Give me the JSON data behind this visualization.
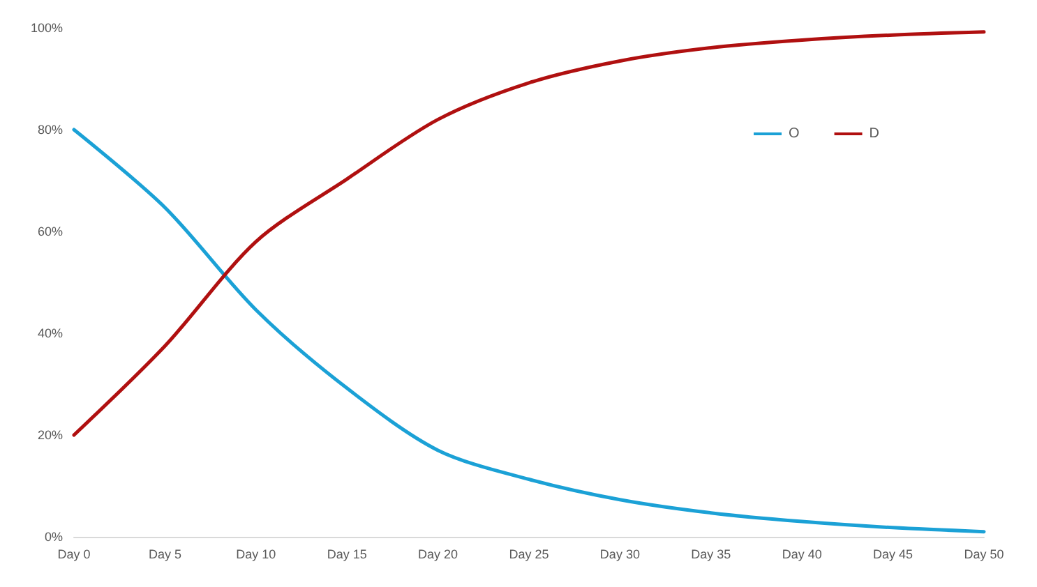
{
  "chart_data": {
    "type": "line",
    "categories": [
      "Day 0",
      "Day 5",
      "Day 10",
      "Day 15",
      "Day 20",
      "Day 25",
      "Day 30",
      "Day 35",
      "Day 40",
      "Day 45",
      "Day 50"
    ],
    "series": [
      {
        "name": "O",
        "color": "#1ba1d6",
        "values": [
          80,
          64.7,
          44.6,
          29.2,
          17,
          11.3,
          7.3,
          4.7,
          3.0,
          1.8,
          1.0
        ]
      },
      {
        "name": "D",
        "color": "#b01010",
        "values": [
          20,
          37.5,
          58,
          70.3,
          82,
          89.2,
          93.5,
          96.1,
          97.6,
          98.6,
          99.2
        ]
      }
    ],
    "ylim": [
      0,
      100
    ],
    "yticks": [
      {
        "value": 0,
        "label": "0%"
      },
      {
        "value": 20,
        "label": "20%"
      },
      {
        "value": 40,
        "label": "40%"
      },
      {
        "value": 60,
        "label": "60%"
      },
      {
        "value": 80,
        "label": "80%"
      },
      {
        "value": 100,
        "label": "100%"
      }
    ],
    "grid": false,
    "legend": "top right",
    "marker": "none",
    "line_style": "solid"
  }
}
